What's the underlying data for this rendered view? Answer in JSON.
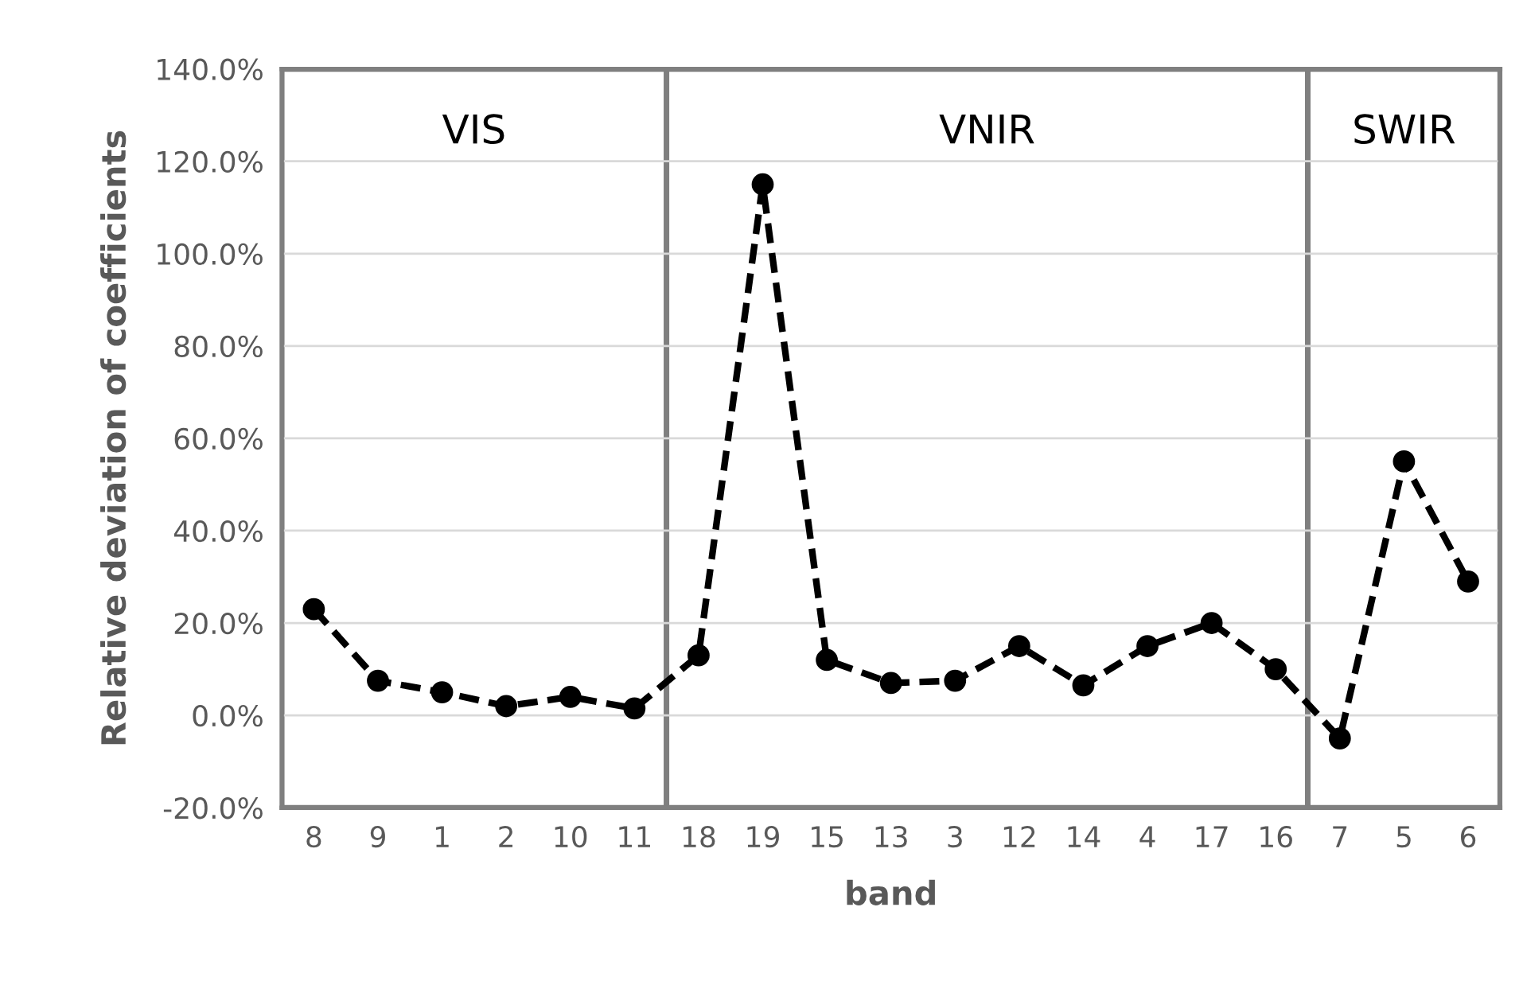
{
  "chart_data": {
    "type": "line",
    "xlabel": "band",
    "ylabel": "Relative deviation of coefficients",
    "categories": [
      "8",
      "9",
      "1",
      "2",
      "10",
      "11",
      "18",
      "19",
      "15",
      "13",
      "3",
      "12",
      "14",
      "4",
      "17",
      "16",
      "7",
      "5",
      "6"
    ],
    "series": [
      {
        "color": "#000000",
        "values": [
          23,
          7.5,
          5,
          2,
          4,
          1.5,
          13,
          115,
          12,
          7,
          7.5,
          15,
          6.5,
          15,
          20,
          10,
          -5,
          55,
          29
        ]
      }
    ],
    "marker": "circle",
    "line_style": "dashed",
    "grid": "y",
    "legend": false,
    "ylim": [
      -20,
      140
    ],
    "yticks": [
      {
        "value": -20,
        "label": "-20.0%"
      },
      {
        "value": 0,
        "label": "0.0%"
      },
      {
        "value": 20,
        "label": "20.0%"
      },
      {
        "value": 40,
        "label": "40.0%"
      },
      {
        "value": 60,
        "label": "60.0%"
      },
      {
        "value": 80,
        "label": "80.0%"
      },
      {
        "value": 100,
        "label": "100.0%"
      },
      {
        "value": 120,
        "label": "120.0%"
      },
      {
        "value": 140,
        "label": "140.0%"
      }
    ],
    "bands": [
      {
        "axis": "x",
        "from": "8",
        "to": "11",
        "label": "VIS",
        "color": "#7f7f7f"
      },
      {
        "axis": "x",
        "from": "18",
        "to": "16",
        "label": "VNIR",
        "color": "#7f7f7f"
      },
      {
        "axis": "x",
        "from": "7",
        "to": "6",
        "label": "SWIR",
        "color": "#7f7f7f"
      }
    ]
  }
}
